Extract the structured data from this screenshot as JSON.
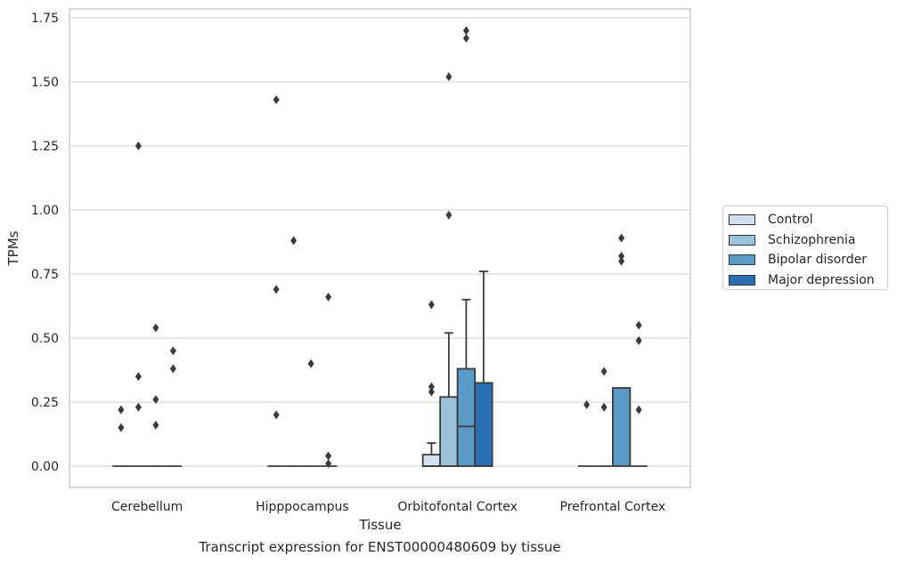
{
  "chart_data": {
    "type": "boxplot",
    "title": "",
    "caption": "Transcript expression for ENST00000480609 by tissue",
    "xlabel": "Tissue",
    "ylabel": "TPMs",
    "ylim": [
      -0.085,
      1.78
    ],
    "yticks": [
      "0.00",
      "0.25",
      "0.50",
      "0.75",
      "1.00",
      "1.25",
      "1.50",
      "1.75"
    ],
    "grid": true,
    "legend_position": "right",
    "categories": [
      "Cerebellum",
      "Hipppocampus",
      "Orbitofontal Cortex",
      "Prefrontal Cortex"
    ],
    "series": [
      {
        "name": "Control",
        "color": "#d1e1ef",
        "boxes": [
          {
            "q1": 0,
            "median": 0,
            "q3": 0,
            "whisker_low": 0,
            "whisker_high": 0,
            "outliers": [
              0.22,
              0.15
            ]
          },
          {
            "q1": 0,
            "median": 0,
            "q3": 0,
            "whisker_low": 0,
            "whisker_high": 0,
            "outliers": [
              1.43,
              0.69,
              0.2
            ]
          },
          {
            "q1": 0,
            "median": 0,
            "q3": 0.045,
            "whisker_low": 0,
            "whisker_high": 0.09,
            "outliers": [
              0.63,
              0.31,
              0.29
            ]
          },
          {
            "q1": 0,
            "median": 0,
            "q3": 0,
            "whisker_low": 0,
            "whisker_high": 0,
            "outliers": [
              0.24
            ]
          }
        ]
      },
      {
        "name": "Schizophrenia",
        "color": "#9cc3dc",
        "boxes": [
          {
            "q1": 0,
            "median": 0,
            "q3": 0,
            "whisker_low": 0,
            "whisker_high": 0,
            "outliers": [
              1.25,
              0.35,
              0.23
            ]
          },
          {
            "q1": 0,
            "median": 0,
            "q3": 0,
            "whisker_low": 0,
            "whisker_high": 0,
            "outliers": [
              0.88
            ]
          },
          {
            "q1": 0,
            "median": 0,
            "q3": 0.27,
            "whisker_low": 0,
            "whisker_high": 0.52,
            "outliers": [
              1.52,
              0.98
            ]
          },
          {
            "q1": 0,
            "median": 0,
            "q3": 0,
            "whisker_low": 0,
            "whisker_high": 0,
            "outliers": [
              0.37,
              0.23
            ]
          }
        ]
      },
      {
        "name": "Bipolar disorder",
        "color": "#5a9bc8",
        "boxes": [
          {
            "q1": 0,
            "median": 0,
            "q3": 0,
            "whisker_low": 0,
            "whisker_high": 0,
            "outliers": [
              0.54,
              0.26,
              0.16
            ]
          },
          {
            "q1": 0,
            "median": 0,
            "q3": 0,
            "whisker_low": 0,
            "whisker_high": 0,
            "outliers": [
              0.4
            ]
          },
          {
            "q1": 0,
            "median": 0.155,
            "q3": 0.38,
            "whisker_low": 0,
            "whisker_high": 0.65,
            "outliers": [
              1.7,
              1.67
            ]
          },
          {
            "q1": 0,
            "median": 0.305,
            "q3": 0.305,
            "whisker_low": 0,
            "whisker_high": 0.305,
            "outliers": [
              0.89,
              0.82,
              0.8
            ]
          }
        ]
      },
      {
        "name": "Major depression",
        "color": "#2a6fb3",
        "boxes": [
          {
            "q1": 0,
            "median": 0,
            "q3": 0,
            "whisker_low": 0,
            "whisker_high": 0,
            "outliers": [
              0.45,
              0.38
            ]
          },
          {
            "q1": 0,
            "median": 0,
            "q3": 0,
            "whisker_low": 0,
            "whisker_high": 0,
            "outliers": [
              0.66,
              0.04,
              0.01
            ]
          },
          {
            "q1": 0,
            "median": 0,
            "q3": 0.325,
            "whisker_low": 0,
            "whisker_high": 0.76,
            "outliers": []
          },
          {
            "q1": 0,
            "median": 0,
            "q3": 0,
            "whisker_low": 0,
            "whisker_high": 0,
            "outliers": [
              0.55,
              0.49,
              0.22
            ]
          }
        ]
      }
    ]
  }
}
